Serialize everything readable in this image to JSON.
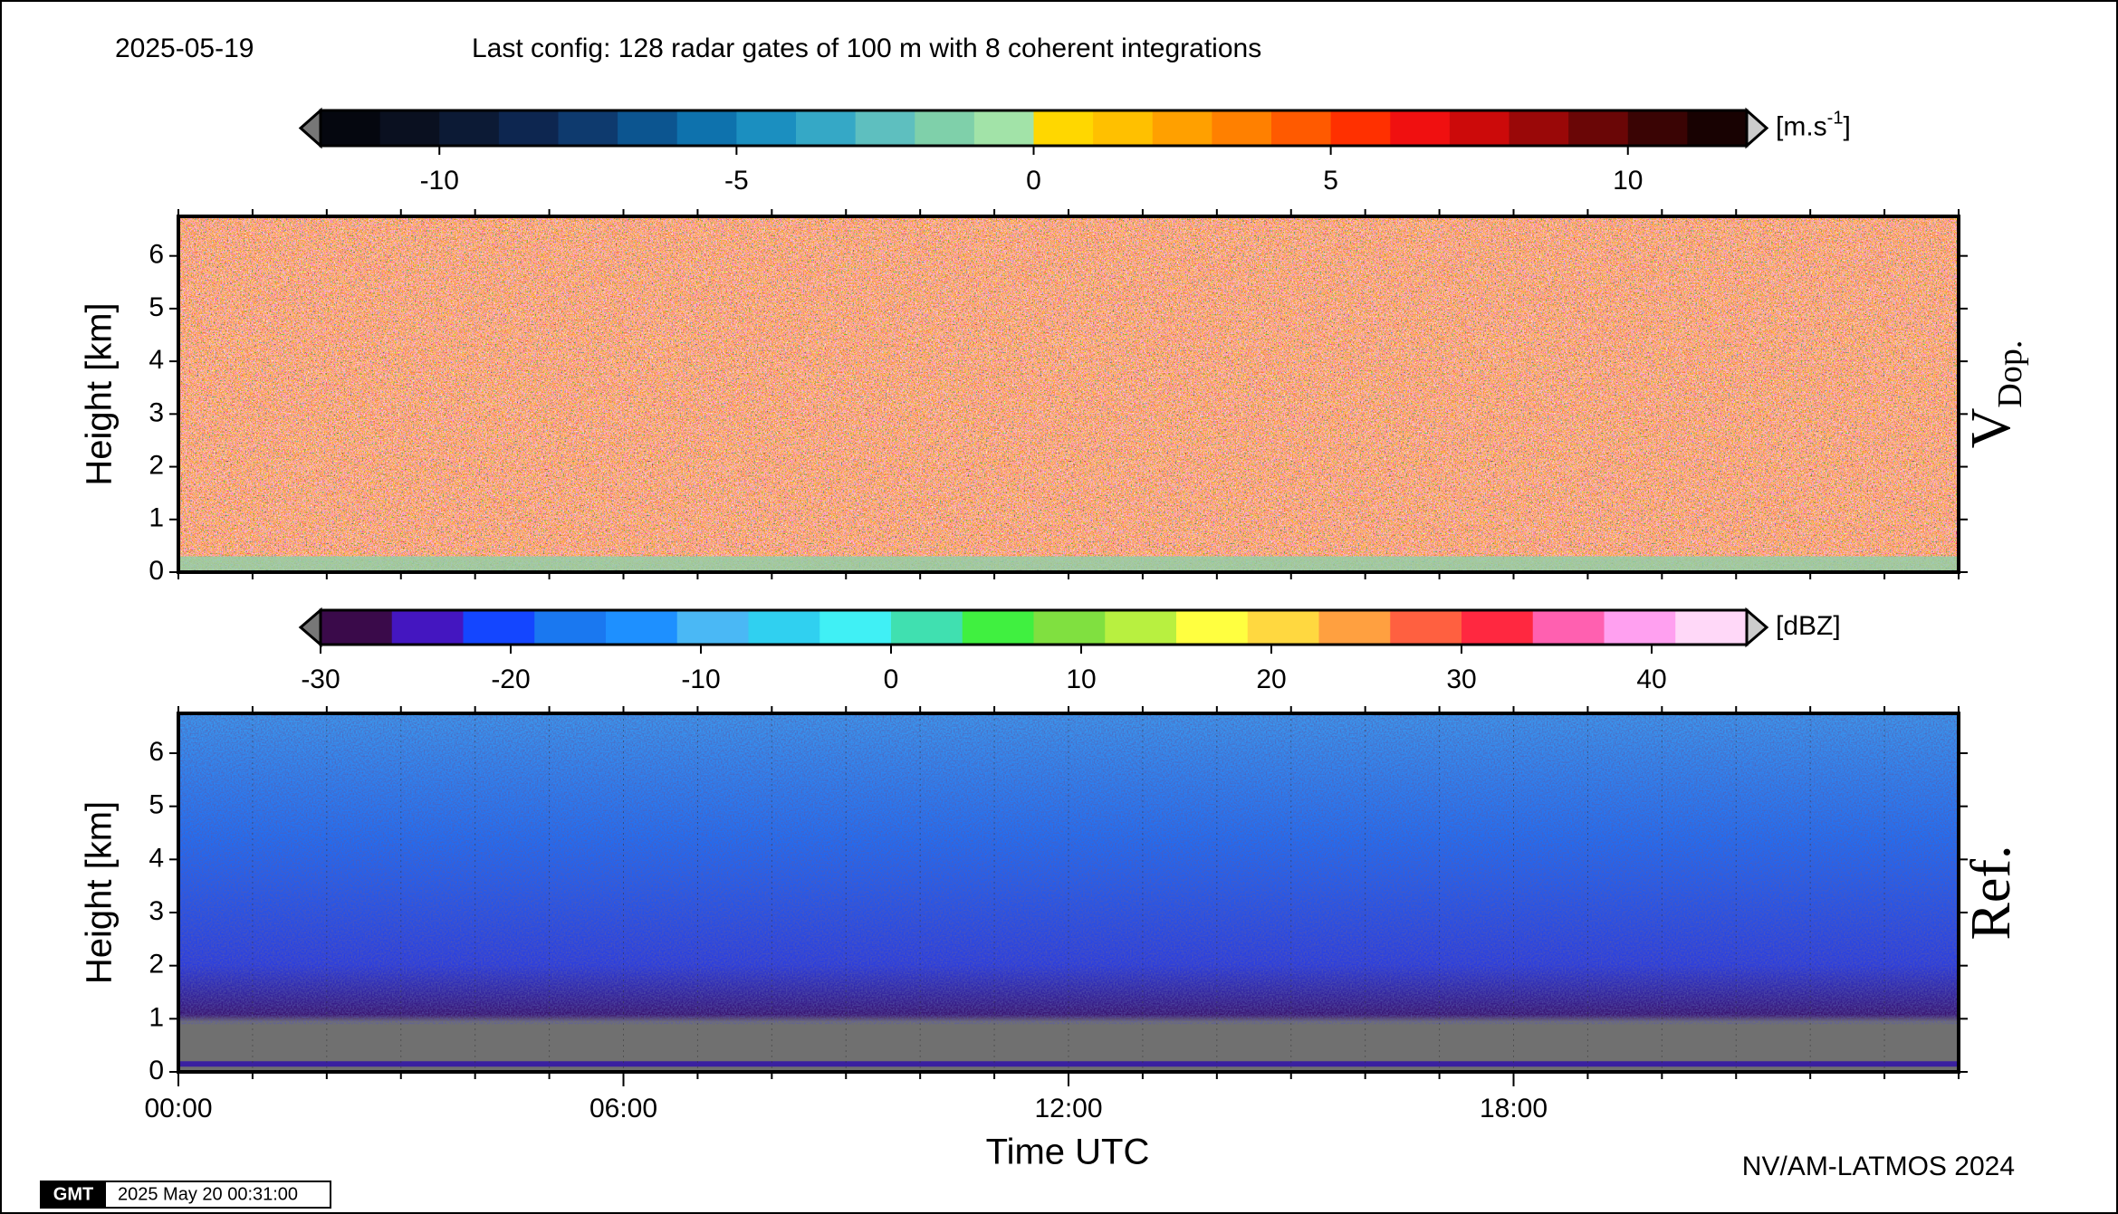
{
  "date": "2025-05-19",
  "config": "Last config: 128 radar gates of 100 m with 8 coherent integrations",
  "credit": "NV/AM-LATMOS 2024",
  "timestamp": "2025 May 20 00:31:00",
  "logo": "GMT",
  "chart_data": [
    {
      "type": "heatmap",
      "panel_label": "V",
      "panel_label_sub": "Dop.",
      "ylabel": "Height [km]",
      "ylim": [
        0,
        6.75
      ],
      "yticks": [
        0,
        1,
        2,
        3,
        4,
        5,
        6
      ],
      "xlim": [
        0,
        24
      ],
      "colorbar": {
        "unit": "[m.s",
        "unit_sup": "-1",
        "unit_end": "]",
        "lim": [
          -12,
          12
        ],
        "ticks": [
          -10,
          -5,
          0,
          5,
          10
        ],
        "colors": [
          "#05070f",
          "#0a1020",
          "#0c1a35",
          "#0d2650",
          "#0e3a6e",
          "#0c5590",
          "#0e72ad",
          "#1b8fc0",
          "#35a8c6",
          "#5ebfbf",
          "#7fd0aa",
          "#a2e3a8",
          "#ffd700",
          "#ffc000",
          "#ffa000",
          "#ff8000",
          "#ff5a00",
          "#ff3000",
          "#f01010",
          "#cc0a0a",
          "#9a0808",
          "#6a0606",
          "#3a0404",
          "#180202"
        ]
      }
    },
    {
      "type": "heatmap",
      "panel_label": "Ref.",
      "ylabel": "Height [km]",
      "xlabel": "Time UTC",
      "ylim": [
        0,
        6.75
      ],
      "yticks": [
        0,
        1,
        2,
        3,
        4,
        5,
        6
      ],
      "xlim": [
        0,
        24
      ],
      "xticks": [
        {
          "value": 0,
          "label": "00:00"
        },
        {
          "value": 6,
          "label": "06:00"
        },
        {
          "value": 12,
          "label": "12:00"
        },
        {
          "value": 18,
          "label": "18:00"
        }
      ],
      "colorbar": {
        "unit": "[dBZ]",
        "lim": [
          -30,
          45
        ],
        "ticks": [
          -30,
          -20,
          -10,
          0,
          10,
          20,
          30,
          40
        ],
        "colors": [
          "#3a0a4a",
          "#4416c0",
          "#1446ff",
          "#1a78f0",
          "#1e90ff",
          "#4ab8f5",
          "#30d0f0",
          "#40f0f5",
          "#40e0b0",
          "#40f040",
          "#80e040",
          "#b8f040",
          "#ffff40",
          "#ffd840",
          "#ffa040",
          "#ff6040",
          "#ff2840",
          "#ff60b0",
          "#ffa0f0",
          "#ffd8f8"
        ]
      }
    }
  ]
}
